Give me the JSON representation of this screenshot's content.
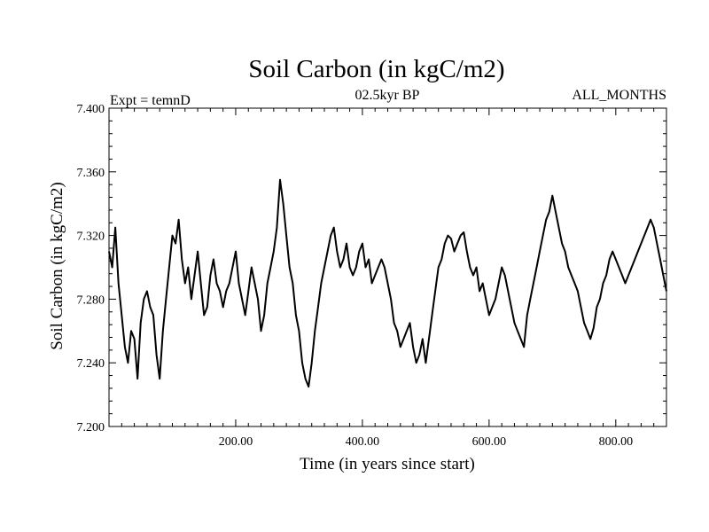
{
  "chart_data": {
    "type": "line",
    "title": "Soil Carbon (in kgC/m2)",
    "subtitle_left": "Expt = temnD",
    "subtitle_center": "02.5kyr BP",
    "subtitle_right": "ALL_MONTHS",
    "xlabel": "Time (in years since start)",
    "ylabel": "Soil Carbon (in kgC/m2)",
    "xlim": [
      0,
      880
    ],
    "ylim": [
      7.2,
      7.4
    ],
    "x_major_ticks": [
      200,
      400,
      600,
      800
    ],
    "x_tick_labels": [
      "200.00",
      "400.00",
      "600.00",
      "800.00"
    ],
    "x_minor_step": 20,
    "y_ticks": [
      7.2,
      7.24,
      7.28,
      7.32,
      7.36,
      7.4
    ],
    "y_tick_labels": [
      "7.200",
      "7.240",
      "7.280",
      "7.320",
      "7.360",
      "7.400"
    ],
    "y_minor_step": 0.008,
    "line_color": "#000000",
    "series": [
      {
        "name": "Soil Carbon",
        "points": [
          [
            0,
            7.31
          ],
          [
            5,
            7.3
          ],
          [
            10,
            7.325
          ],
          [
            15,
            7.29
          ],
          [
            20,
            7.27
          ],
          [
            25,
            7.25
          ],
          [
            30,
            7.24
          ],
          [
            35,
            7.26
          ],
          [
            40,
            7.255
          ],
          [
            45,
            7.23
          ],
          [
            50,
            7.265
          ],
          [
            55,
            7.28
          ],
          [
            60,
            7.285
          ],
          [
            65,
            7.275
          ],
          [
            70,
            7.27
          ],
          [
            75,
            7.245
          ],
          [
            80,
            7.23
          ],
          [
            85,
            7.26
          ],
          [
            90,
            7.28
          ],
          [
            95,
            7.3
          ],
          [
            100,
            7.32
          ],
          [
            105,
            7.315
          ],
          [
            110,
            7.33
          ],
          [
            115,
            7.305
          ],
          [
            120,
            7.29
          ],
          [
            125,
            7.3
          ],
          [
            130,
            7.28
          ],
          [
            135,
            7.295
          ],
          [
            140,
            7.31
          ],
          [
            145,
            7.29
          ],
          [
            150,
            7.27
          ],
          [
            155,
            7.275
          ],
          [
            160,
            7.295
          ],
          [
            165,
            7.305
          ],
          [
            170,
            7.29
          ],
          [
            175,
            7.285
          ],
          [
            180,
            7.275
          ],
          [
            185,
            7.285
          ],
          [
            190,
            7.29
          ],
          [
            195,
            7.3
          ],
          [
            200,
            7.31
          ],
          [
            205,
            7.29
          ],
          [
            210,
            7.28
          ],
          [
            215,
            7.27
          ],
          [
            220,
            7.285
          ],
          [
            225,
            7.3
          ],
          [
            230,
            7.29
          ],
          [
            235,
            7.28
          ],
          [
            240,
            7.26
          ],
          [
            245,
            7.27
          ],
          [
            250,
            7.29
          ],
          [
            255,
            7.3
          ],
          [
            260,
            7.31
          ],
          [
            265,
            7.325
          ],
          [
            270,
            7.355
          ],
          [
            275,
            7.34
          ],
          [
            280,
            7.32
          ],
          [
            285,
            7.3
          ],
          [
            290,
            7.29
          ],
          [
            295,
            7.27
          ],
          [
            300,
            7.26
          ],
          [
            305,
            7.24
          ],
          [
            310,
            7.23
          ],
          [
            315,
            7.225
          ],
          [
            320,
            7.24
          ],
          [
            325,
            7.26
          ],
          [
            330,
            7.275
          ],
          [
            335,
            7.29
          ],
          [
            340,
            7.3
          ],
          [
            345,
            7.31
          ],
          [
            350,
            7.32
          ],
          [
            355,
            7.325
          ],
          [
            360,
            7.31
          ],
          [
            365,
            7.3
          ],
          [
            370,
            7.305
          ],
          [
            375,
            7.315
          ],
          [
            380,
            7.3
          ],
          [
            385,
            7.295
          ],
          [
            390,
            7.3
          ],
          [
            395,
            7.31
          ],
          [
            400,
            7.315
          ],
          [
            405,
            7.3
          ],
          [
            410,
            7.305
          ],
          [
            415,
            7.29
          ],
          [
            420,
            7.295
          ],
          [
            425,
            7.3
          ],
          [
            430,
            7.305
          ],
          [
            435,
            7.3
          ],
          [
            440,
            7.29
          ],
          [
            445,
            7.28
          ],
          [
            450,
            7.265
          ],
          [
            455,
            7.26
          ],
          [
            460,
            7.25
          ],
          [
            465,
            7.255
          ],
          [
            470,
            7.26
          ],
          [
            475,
            7.265
          ],
          [
            480,
            7.25
          ],
          [
            485,
            7.24
          ],
          [
            490,
            7.245
          ],
          [
            495,
            7.255
          ],
          [
            500,
            7.24
          ],
          [
            505,
            7.255
          ],
          [
            510,
            7.27
          ],
          [
            515,
            7.285
          ],
          [
            520,
            7.3
          ],
          [
            525,
            7.305
          ],
          [
            530,
            7.315
          ],
          [
            535,
            7.32
          ],
          [
            540,
            7.318
          ],
          [
            545,
            7.31
          ],
          [
            550,
            7.315
          ],
          [
            555,
            7.32
          ],
          [
            560,
            7.322
          ],
          [
            565,
            7.31
          ],
          [
            570,
            7.3
          ],
          [
            575,
            7.295
          ],
          [
            580,
            7.3
          ],
          [
            585,
            7.285
          ],
          [
            590,
            7.29
          ],
          [
            595,
            7.28
          ],
          [
            600,
            7.27
          ],
          [
            605,
            7.275
          ],
          [
            610,
            7.28
          ],
          [
            615,
            7.29
          ],
          [
            620,
            7.3
          ],
          [
            625,
            7.295
          ],
          [
            630,
            7.285
          ],
          [
            635,
            7.275
          ],
          [
            640,
            7.265
          ],
          [
            645,
            7.26
          ],
          [
            650,
            7.255
          ],
          [
            655,
            7.25
          ],
          [
            660,
            7.27
          ],
          [
            665,
            7.28
          ],
          [
            670,
            7.29
          ],
          [
            675,
            7.3
          ],
          [
            680,
            7.31
          ],
          [
            685,
            7.32
          ],
          [
            690,
            7.33
          ],
          [
            695,
            7.335
          ],
          [
            700,
            7.345
          ],
          [
            705,
            7.335
          ],
          [
            710,
            7.325
          ],
          [
            715,
            7.315
          ],
          [
            720,
            7.31
          ],
          [
            725,
            7.3
          ],
          [
            730,
            7.295
          ],
          [
            735,
            7.29
          ],
          [
            740,
            7.285
          ],
          [
            745,
            7.275
          ],
          [
            750,
            7.265
          ],
          [
            755,
            7.26
          ],
          [
            760,
            7.255
          ],
          [
            765,
            7.262
          ],
          [
            770,
            7.275
          ],
          [
            775,
            7.28
          ],
          [
            780,
            7.29
          ],
          [
            785,
            7.295
          ],
          [
            790,
            7.305
          ],
          [
            795,
            7.31
          ],
          [
            800,
            7.305
          ],
          [
            805,
            7.3
          ],
          [
            810,
            7.295
          ],
          [
            815,
            7.29
          ],
          [
            820,
            7.295
          ],
          [
            825,
            7.3
          ],
          [
            830,
            7.305
          ],
          [
            835,
            7.31
          ],
          [
            840,
            7.315
          ],
          [
            845,
            7.32
          ],
          [
            850,
            7.325
          ],
          [
            855,
            7.33
          ],
          [
            860,
            7.325
          ],
          [
            865,
            7.315
          ],
          [
            870,
            7.305
          ],
          [
            875,
            7.295
          ],
          [
            880,
            7.285
          ]
        ]
      }
    ]
  }
}
